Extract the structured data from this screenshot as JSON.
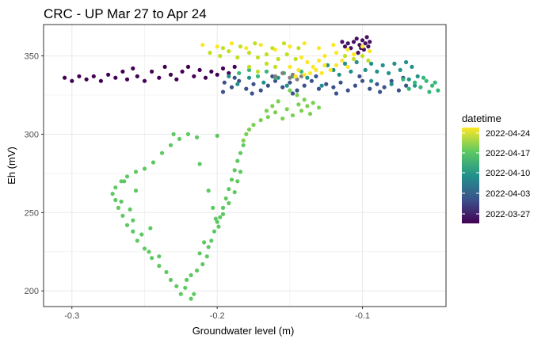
{
  "chart_data": {
    "type": "scatter",
    "title": "CRC - UP Mar 27 to Apr 24",
    "xlabel": "Groundwater level (m)",
    "ylabel": "Eh (mV)",
    "xlim": [
      -0.3195,
      -0.0425
    ],
    "ylim": [
      190,
      370
    ],
    "x_ticks": [
      -0.3,
      -0.2,
      -0.1
    ],
    "x_tick_labels": [
      "-0.3",
      "-0.2",
      "-0.1"
    ],
    "y_ticks": [
      200,
      250,
      300,
      350
    ],
    "y_tick_labels": [
      "200",
      "250",
      "300",
      "350"
    ],
    "grid": true,
    "legend": {
      "title": "datetime",
      "position": "right",
      "type": "colorbar",
      "colormap": "viridis",
      "labels": [
        "2022-04-24",
        "2022-04-17",
        "2022-04-10",
        "2022-04-03",
        "2022-03-27"
      ],
      "colors": [
        "#fde725",
        "#5ec962",
        "#21918c",
        "#3b528b",
        "#440154"
      ]
    },
    "colors": {
      "panel_border": "#333333",
      "grid": "#ebebeb",
      "missing": "#808080"
    },
    "groups": [
      {
        "name": "late-march",
        "color": "#440154",
        "points": [
          [
            -0.305,
            336
          ],
          [
            -0.3,
            334
          ],
          [
            -0.295,
            337
          ],
          [
            -0.29,
            335
          ],
          [
            -0.285,
            337
          ],
          [
            -0.28,
            334
          ],
          [
            -0.275,
            338
          ],
          [
            -0.27,
            336
          ],
          [
            -0.265,
            340
          ],
          [
            -0.262,
            335
          ],
          [
            -0.258,
            342
          ],
          [
            -0.255,
            337
          ],
          [
            -0.25,
            334
          ],
          [
            -0.245,
            340
          ],
          [
            -0.24,
            336
          ],
          [
            -0.236,
            343
          ],
          [
            -0.232,
            338
          ],
          [
            -0.228,
            335
          ],
          [
            -0.224,
            340
          ],
          [
            -0.22,
            343
          ],
          [
            -0.216,
            337
          ],
          [
            -0.212,
            341
          ],
          [
            -0.208,
            336
          ],
          [
            -0.204,
            340
          ],
          [
            -0.2,
            338
          ],
          [
            -0.196,
            342
          ],
          [
            -0.192,
            339
          ],
          [
            -0.188,
            343
          ]
        ]
      },
      {
        "name": "late-march-high",
        "color": "#471063",
        "points": [
          [
            -0.106,
            359
          ],
          [
            -0.104,
            361
          ],
          [
            -0.102,
            357
          ],
          [
            -0.1,
            360
          ],
          [
            -0.098,
            358
          ],
          [
            -0.096,
            356
          ],
          [
            -0.108,
            355
          ],
          [
            -0.11,
            358
          ],
          [
            -0.112,
            356
          ],
          [
            -0.114,
            359
          ],
          [
            -0.097,
            362
          ],
          [
            -0.101,
            355
          ],
          [
            -0.103,
            352
          ],
          [
            -0.099,
            354
          ],
          [
            -0.095,
            359
          ]
        ]
      },
      {
        "name": "early-april-band",
        "color": "#3b528b",
        "points": [
          [
            -0.195,
            333
          ],
          [
            -0.19,
            330
          ],
          [
            -0.185,
            334
          ],
          [
            -0.18,
            329
          ],
          [
            -0.175,
            332
          ],
          [
            -0.17,
            328
          ],
          [
            -0.165,
            331
          ],
          [
            -0.16,
            334
          ],
          [
            -0.155,
            330
          ],
          [
            -0.15,
            333
          ],
          [
            -0.145,
            328
          ],
          [
            -0.14,
            331
          ],
          [
            -0.135,
            334
          ],
          [
            -0.13,
            329
          ],
          [
            -0.125,
            332
          ],
          [
            -0.12,
            330
          ],
          [
            -0.115,
            333
          ],
          [
            -0.11,
            328
          ],
          [
            -0.105,
            331
          ],
          [
            -0.1,
            334
          ],
          [
            -0.095,
            329
          ],
          [
            -0.09,
            332
          ],
          [
            -0.085,
            330
          ],
          [
            -0.08,
            334
          ],
          [
            -0.075,
            328
          ],
          [
            -0.07,
            331
          ],
          [
            -0.196,
            327
          ],
          [
            -0.188,
            336
          ],
          [
            -0.176,
            326
          ],
          [
            -0.162,
            337
          ],
          [
            -0.148,
            326
          ],
          [
            -0.132,
            337
          ],
          [
            -0.118,
            326
          ],
          [
            -0.102,
            337
          ],
          [
            -0.088,
            327
          ],
          [
            -0.072,
            336
          ]
        ]
      },
      {
        "name": "april-band-teal",
        "color": "#21918c",
        "points": [
          [
            -0.192,
            337
          ],
          [
            -0.186,
            332
          ],
          [
            -0.178,
            336
          ],
          [
            -0.168,
            333
          ],
          [
            -0.158,
            336
          ],
          [
            -0.152,
            331
          ],
          [
            -0.138,
            336
          ],
          [
            -0.128,
            331
          ],
          [
            -0.112,
            345
          ],
          [
            -0.108,
            340
          ],
          [
            -0.104,
            346
          ],
          [
            -0.098,
            341
          ],
          [
            -0.094,
            345
          ],
          [
            -0.09,
            340
          ],
          [
            -0.086,
            344
          ],
          [
            -0.082,
            339
          ],
          [
            -0.078,
            345
          ],
          [
            -0.074,
            341
          ],
          [
            -0.07,
            346
          ],
          [
            -0.066,
            343
          ],
          [
            -0.062,
            337
          ],
          [
            -0.08,
            332
          ],
          [
            -0.094,
            334
          ],
          [
            -0.116,
            338
          ],
          [
            -0.124,
            344
          ],
          [
            -0.12,
            341
          ],
          [
            -0.064,
            331
          ],
          [
            -0.068,
            335
          ]
        ]
      },
      {
        "name": "april-band-green",
        "color": "#35b779",
        "points": [
          [
            -0.185,
            339
          ],
          [
            -0.178,
            341
          ],
          [
            -0.172,
            337
          ],
          [
            -0.166,
            340
          ],
          [
            -0.16,
            336
          ],
          [
            -0.154,
            339
          ],
          [
            -0.148,
            337
          ],
          [
            -0.142,
            340
          ],
          [
            -0.072,
            335
          ],
          [
            -0.068,
            329
          ],
          [
            -0.064,
            333
          ],
          [
            -0.06,
            330
          ],
          [
            -0.056,
            334
          ],
          [
            -0.052,
            331
          ],
          [
            -0.048,
            328
          ],
          [
            -0.058,
            336
          ],
          [
            -0.05,
            333
          ],
          [
            -0.054,
            327
          ]
        ]
      },
      {
        "name": "missing",
        "color": "#808080",
        "points": [
          [
            -0.16,
            337
          ],
          [
            -0.155,
            339
          ],
          [
            -0.15,
            336
          ],
          [
            -0.148,
            338
          ],
          [
            -0.145,
            335
          ],
          [
            -0.142,
            337
          ]
        ]
      },
      {
        "name": "mid-april-transition",
        "color": "#7ad151",
        "points": [
          [
            -0.15,
            328
          ],
          [
            -0.145,
            325
          ],
          [
            -0.14,
            322
          ],
          [
            -0.138,
            318
          ],
          [
            -0.142,
            315
          ],
          [
            -0.148,
            312
          ],
          [
            -0.155,
            310
          ],
          [
            -0.16,
            314
          ],
          [
            -0.165,
            311
          ],
          [
            -0.17,
            309
          ],
          [
            -0.175,
            306
          ],
          [
            -0.178,
            303
          ],
          [
            -0.18,
            300
          ],
          [
            -0.182,
            296
          ],
          [
            -0.134,
            320
          ],
          [
            -0.13,
            317
          ],
          [
            -0.136,
            313
          ],
          [
            -0.144,
            319
          ],
          [
            -0.152,
            316
          ],
          [
            -0.158,
            321
          ],
          [
            -0.162,
            318
          ],
          [
            -0.166,
            315
          ]
        ]
      },
      {
        "name": "loop",
        "color": "#5ec962",
        "points": [
          [
            -0.182,
            293
          ],
          [
            -0.184,
            288
          ],
          [
            -0.186,
            283
          ],
          [
            -0.188,
            277
          ],
          [
            -0.19,
            271
          ],
          [
            -0.192,
            265
          ],
          [
            -0.194,
            259
          ],
          [
            -0.196,
            253
          ],
          [
            -0.198,
            247
          ],
          [
            -0.2,
            244
          ],
          [
            -0.202,
            238
          ],
          [
            -0.204,
            232
          ],
          [
            -0.206,
            228
          ],
          [
            -0.207,
            222
          ],
          [
            -0.21,
            217
          ],
          [
            -0.214,
            213
          ],
          [
            -0.218,
            210
          ],
          [
            -0.221,
            207
          ],
          [
            -0.222,
            202
          ],
          [
            -0.225,
            198
          ],
          [
            -0.228,
            203
          ],
          [
            -0.232,
            207
          ],
          [
            -0.235,
            212
          ],
          [
            -0.24,
            216
          ],
          [
            -0.245,
            221
          ],
          [
            -0.25,
            227
          ],
          [
            -0.255,
            232
          ],
          [
            -0.258,
            238
          ],
          [
            -0.262,
            242
          ],
          [
            -0.265,
            248
          ],
          [
            -0.268,
            253
          ],
          [
            -0.27,
            258
          ],
          [
            -0.272,
            262
          ],
          [
            -0.27,
            266
          ],
          [
            -0.266,
            270
          ],
          [
            -0.262,
            273
          ],
          [
            -0.256,
            276
          ],
          [
            -0.25,
            278
          ],
          [
            -0.244,
            282
          ],
          [
            -0.238,
            288
          ],
          [
            -0.232,
            293
          ],
          [
            -0.226,
            297
          ],
          [
            -0.22,
            300
          ],
          [
            -0.214,
            298
          ],
          [
            -0.196,
            249
          ],
          [
            -0.192,
            256
          ],
          [
            -0.188,
            263
          ],
          [
            -0.186,
            270
          ],
          [
            -0.184,
            276
          ],
          [
            -0.201,
            246
          ],
          [
            -0.199,
            241
          ],
          [
            -0.24,
            222
          ],
          [
            -0.246,
            240
          ],
          [
            -0.256,
            264
          ],
          [
            -0.26,
            252
          ],
          [
            -0.264,
            270
          ],
          [
            -0.23,
            300
          ],
          [
            -0.212,
            281
          ],
          [
            -0.2,
            299
          ],
          [
            -0.206,
            264
          ],
          [
            -0.203,
            253
          ],
          [
            -0.218,
            195
          ],
          [
            -0.216,
            198
          ],
          [
            -0.212,
            224
          ],
          [
            -0.209,
            231
          ],
          [
            -0.247,
            225
          ],
          [
            -0.252,
            236
          ],
          [
            -0.258,
            245
          ],
          [
            -0.266,
            257
          ]
        ]
      },
      {
        "name": "late-april-yellow",
        "color": "#fde725",
        "points": [
          [
            -0.21,
            357
          ],
          [
            -0.2,
            356
          ],
          [
            -0.19,
            358
          ],
          [
            -0.18,
            355
          ],
          [
            -0.17,
            357
          ],
          [
            -0.16,
            354
          ],
          [
            -0.15,
            356
          ],
          [
            -0.14,
            358
          ],
          [
            -0.13,
            355
          ],
          [
            -0.12,
            357
          ],
          [
            -0.11,
            354
          ],
          [
            -0.1,
            356
          ],
          [
            -0.095,
            353
          ],
          [
            -0.142,
            349
          ],
          [
            -0.138,
            346
          ],
          [
            -0.134,
            343
          ],
          [
            -0.13,
            347
          ],
          [
            -0.126,
            344
          ],
          [
            -0.122,
            341
          ],
          [
            -0.118,
            344
          ],
          [
            -0.114,
            347
          ],
          [
            -0.11,
            343
          ],
          [
            -0.136,
            339
          ],
          [
            -0.132,
            341
          ],
          [
            -0.128,
            339
          ],
          [
            -0.144,
            341
          ],
          [
            -0.15,
            343
          ],
          [
            -0.146,
            337
          ],
          [
            -0.14,
            338
          ],
          [
            -0.126,
            350
          ],
          [
            -0.118,
            352
          ],
          [
            -0.106,
            351
          ]
        ]
      },
      {
        "name": "late-april-lime",
        "color": "#c2df23",
        "points": [
          [
            -0.205,
            352
          ],
          [
            -0.198,
            350
          ],
          [
            -0.192,
            353
          ],
          [
            -0.186,
            349
          ],
          [
            -0.178,
            352
          ],
          [
            -0.172,
            349
          ],
          [
            -0.166,
            351
          ],
          [
            -0.158,
            348
          ],
          [
            -0.152,
            351
          ],
          [
            -0.146,
            348
          ],
          [
            -0.112,
            350
          ],
          [
            -0.106,
            348
          ],
          [
            -0.1,
            350
          ],
          [
            -0.096,
            347
          ],
          [
            -0.196,
            355
          ],
          [
            -0.184,
            356
          ],
          [
            -0.174,
            358
          ],
          [
            -0.162,
            355
          ],
          [
            -0.154,
            358
          ],
          [
            -0.144,
            355
          ],
          [
            -0.16,
            343
          ],
          [
            -0.166,
            345
          ],
          [
            -0.172,
            340
          ],
          [
            -0.178,
            343
          ]
        ]
      }
    ]
  }
}
